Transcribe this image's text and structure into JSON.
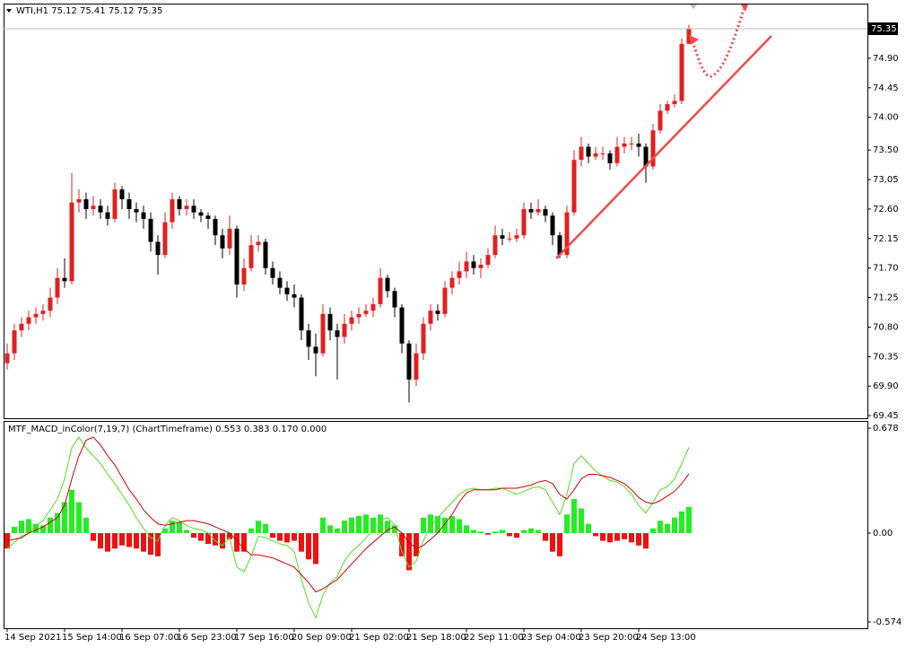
{
  "chart_data": [
    {
      "type": "candlestick",
      "title": "WTI,H1",
      "up_color": "#e02020",
      "down_color": "#000000",
      "categories": [
        "14 Sep 2021",
        null,
        null,
        null,
        null,
        null,
        null,
        null,
        "15 Sep 14:00",
        null,
        null,
        null,
        null,
        null,
        null,
        null,
        "16 Sep 07:00",
        null,
        null,
        null,
        null,
        null,
        null,
        null,
        "16 Sep 23:00",
        null,
        null,
        null,
        null,
        null,
        null,
        null,
        "17 Sep 16:00",
        null,
        null,
        null,
        null,
        null,
        null,
        null,
        "20 Sep 09:00",
        null,
        null,
        null,
        null,
        null,
        null,
        null,
        "21 Sep 02:00",
        null,
        null,
        null,
        null,
        null,
        null,
        null,
        "21 Sep 18:00",
        null,
        null,
        null,
        null,
        null,
        null,
        null,
        "22 Sep 11:00",
        null,
        null,
        null,
        null,
        null,
        null,
        null,
        "23 Sep 04:00",
        null,
        null,
        null,
        null,
        null,
        null,
        null,
        "23 Sep 20:00",
        null,
        null,
        null,
        null,
        null,
        null,
        null,
        "24 Sep 13:00",
        null,
        null,
        null,
        null,
        null,
        null,
        null
      ],
      "open": [
        70.25,
        70.4,
        70.75,
        70.85,
        70.95,
        71.0,
        71.05,
        71.25,
        71.55,
        71.5,
        72.7,
        72.75,
        72.6,
        72.65,
        72.55,
        72.45,
        72.9,
        72.75,
        72.6,
        72.55,
        72.45,
        72.1,
        71.9,
        72.4,
        72.75,
        72.6,
        72.65,
        72.55,
        72.5,
        72.45,
        72.2,
        72.0,
        72.3,
        71.45,
        71.7,
        72.05,
        72.1,
        71.7,
        71.55,
        71.4,
        71.3,
        71.25,
        70.75,
        70.5,
        70.4,
        71.0,
        70.75,
        70.65,
        70.85,
        70.95,
        71.0,
        71.05,
        71.15,
        71.55,
        71.35,
        71.1,
        70.55,
        70.0,
        70.4,
        70.85,
        71.05,
        71.0,
        71.4,
        71.55,
        71.65,
        71.8,
        71.7,
        71.75,
        71.9,
        72.2,
        72.15,
        72.15,
        72.2,
        72.6,
        72.55,
        72.6,
        72.5,
        72.2,
        71.9,
        72.55,
        73.35,
        73.55,
        73.4,
        73.45,
        73.45,
        73.3,
        73.55,
        73.6,
        73.6,
        73.55,
        73.25,
        73.8,
        74.1,
        74.2,
        74.25,
        75.12
      ],
      "high": [
        70.55,
        70.85,
        70.95,
        71.05,
        71.1,
        71.15,
        71.4,
        71.7,
        71.85,
        73.15,
        72.9,
        72.85,
        72.8,
        72.75,
        72.65,
        73.0,
        72.95,
        72.85,
        72.7,
        72.65,
        72.55,
        72.2,
        72.55,
        72.85,
        72.8,
        72.75,
        72.75,
        72.6,
        72.55,
        72.5,
        72.3,
        72.5,
        72.35,
        71.85,
        72.2,
        72.2,
        72.15,
        71.8,
        71.65,
        71.5,
        71.45,
        71.3,
        70.85,
        70.7,
        71.15,
        71.1,
        70.85,
        71.0,
        71.05,
        71.1,
        71.15,
        71.25,
        71.7,
        71.6,
        71.4,
        71.15,
        70.6,
        70.55,
        70.95,
        71.15,
        71.15,
        71.5,
        71.65,
        71.8,
        71.95,
        71.9,
        71.85,
        72.0,
        72.35,
        72.3,
        72.25,
        72.3,
        72.7,
        72.7,
        72.75,
        72.65,
        72.55,
        72.25,
        72.65,
        73.5,
        73.7,
        73.6,
        73.55,
        73.55,
        73.5,
        73.7,
        73.7,
        73.7,
        73.75,
        73.6,
        73.9,
        74.2,
        74.25,
        74.35,
        75.2,
        75.41
      ],
      "low": [
        70.15,
        70.3,
        70.65,
        70.75,
        70.85,
        70.9,
        70.95,
        71.15,
        71.4,
        71.45,
        72.55,
        72.45,
        72.5,
        72.45,
        72.35,
        72.4,
        72.6,
        72.45,
        72.4,
        72.3,
        71.95,
        71.6,
        71.85,
        72.3,
        72.5,
        72.5,
        72.45,
        72.4,
        72.3,
        72.05,
        71.85,
        71.9,
        71.25,
        71.35,
        71.65,
        71.95,
        71.6,
        71.45,
        71.3,
        71.2,
        71.1,
        70.6,
        70.3,
        70.05,
        70.35,
        70.6,
        70.0,
        70.55,
        70.75,
        70.85,
        70.95,
        70.95,
        71.1,
        71.25,
        70.95,
        70.4,
        69.65,
        69.9,
        70.3,
        70.75,
        70.9,
        70.95,
        71.3,
        71.45,
        71.55,
        71.6,
        71.55,
        71.7,
        71.85,
        72.05,
        72.1,
        72.1,
        72.15,
        72.45,
        72.5,
        72.4,
        72.05,
        71.85,
        71.85,
        72.5,
        73.25,
        73.3,
        73.35,
        73.35,
        73.2,
        73.25,
        73.45,
        73.5,
        73.4,
        73.0,
        73.2,
        73.75,
        74.05,
        74.15,
        74.2,
        75.12
      ],
      "close": [
        70.4,
        70.75,
        70.85,
        70.95,
        71.0,
        71.05,
        71.25,
        71.55,
        71.5,
        72.7,
        72.75,
        72.6,
        72.65,
        72.55,
        72.45,
        72.9,
        72.75,
        72.6,
        72.55,
        72.45,
        72.1,
        71.9,
        72.4,
        72.75,
        72.6,
        72.65,
        72.55,
        72.5,
        72.45,
        72.2,
        72.0,
        72.3,
        71.45,
        71.7,
        72.05,
        72.1,
        71.7,
        71.55,
        71.4,
        71.3,
        71.25,
        70.75,
        70.5,
        70.4,
        71.0,
        70.75,
        70.65,
        70.85,
        70.95,
        71.0,
        71.05,
        71.15,
        71.55,
        71.35,
        71.1,
        70.55,
        70.0,
        70.4,
        70.85,
        71.05,
        71.0,
        71.4,
        71.55,
        71.65,
        71.8,
        71.7,
        71.75,
        71.9,
        72.2,
        72.15,
        72.15,
        72.2,
        72.6,
        72.55,
        72.6,
        72.5,
        72.2,
        71.9,
        72.55,
        73.35,
        73.55,
        73.4,
        73.45,
        73.45,
        73.3,
        73.55,
        73.6,
        73.6,
        73.55,
        73.25,
        73.8,
        74.1,
        74.2,
        74.25,
        75.12,
        75.35
      ],
      "ylim": [
        69.41,
        75.72
      ],
      "yticks": [
        {
          "value": 74.9,
          "label": "74.90"
        },
        74.45,
        {
          "value": 74,
          "label": "74.00"
        },
        {
          "value": 73.5,
          "label": "73.50"
        },
        73.05,
        {
          "value": 72.6,
          "label": "72.60"
        },
        72.15,
        {
          "value": 71.7,
          "label": "71.70"
        },
        71.25,
        {
          "value": 70.8,
          "label": "70.80"
        },
        70.35,
        {
          "value": 69.9,
          "label": "69.90"
        },
        69.45
      ],
      "grid": false
    },
    {
      "type": "combo",
      "title": "MTF_MACD_inColor(7,19,7) (ChartTimeframe)",
      "legend_values": [
        0.553,
        0.383,
        {
          "value": 0.17,
          "label": "0.170"
        },
        {
          "value": 0,
          "label": "0.000"
        }
      ],
      "series": [
        {
          "name": "MACD",
          "kind": "line",
          "color": "#55dd22",
          "values": [
            -0.1,
            -0.06,
            -0.02,
            0.0,
            0.05,
            0.08,
            0.15,
            0.22,
            0.35,
            0.55,
            0.62,
            0.55,
            0.5,
            0.45,
            0.38,
            0.32,
            0.25,
            0.18,
            0.1,
            0.03,
            -0.03,
            -0.05,
            0.05,
            0.1,
            0.08,
            0.05,
            0.03,
            0.02,
            0.0,
            -0.05,
            -0.08,
            -0.03,
            -0.22,
            -0.25,
            -0.15,
            -0.02,
            -0.03,
            -0.05,
            -0.07,
            -0.08,
            -0.12,
            -0.3,
            -0.45,
            -0.55,
            -0.4,
            -0.32,
            -0.28,
            -0.18,
            -0.12,
            -0.08,
            -0.03,
            0.02,
            0.08,
            0.1,
            0.05,
            -0.12,
            -0.22,
            -0.18,
            -0.05,
            0.05,
            0.1,
            0.15,
            0.2,
            0.25,
            0.28,
            0.29,
            0.28,
            0.28,
            0.29,
            0.29,
            0.27,
            0.25,
            0.27,
            0.29,
            0.3,
            0.28,
            0.2,
            0.12,
            0.25,
            0.45,
            0.5,
            0.45,
            0.4,
            0.37,
            0.34,
            0.33,
            0.3,
            0.25,
            0.18,
            0.13,
            0.2,
            0.28,
            0.3,
            0.35,
            0.45,
            0.553
          ]
        },
        {
          "name": "Signal",
          "kind": "line",
          "color": "#cc0000",
          "values": [
            -0.05,
            -0.04,
            -0.03,
            0.0,
            0.02,
            0.04,
            0.07,
            0.1,
            0.18,
            0.35,
            0.5,
            0.6,
            0.62,
            0.57,
            0.5,
            0.44,
            0.36,
            0.28,
            0.22,
            0.15,
            0.1,
            0.06,
            0.05,
            0.06,
            0.07,
            0.08,
            0.08,
            0.07,
            0.06,
            0.04,
            0.02,
            0.0,
            -0.05,
            -0.1,
            -0.14,
            -0.14,
            -0.15,
            -0.16,
            -0.18,
            -0.2,
            -0.22,
            -0.27,
            -0.32,
            -0.38,
            -0.36,
            -0.33,
            -0.3,
            -0.25,
            -0.2,
            -0.15,
            -0.1,
            -0.06,
            -0.02,
            0.02,
            0.04,
            0.0,
            -0.06,
            -0.1,
            -0.08,
            -0.04,
            0.0,
            0.06,
            0.12,
            0.2,
            0.26,
            0.28,
            0.28,
            0.28,
            0.28,
            0.29,
            0.29,
            0.29,
            0.3,
            0.31,
            0.33,
            0.34,
            0.32,
            0.25,
            0.22,
            0.28,
            0.35,
            0.38,
            0.38,
            0.37,
            0.36,
            0.34,
            0.32,
            0.28,
            0.23,
            0.2,
            0.19,
            0.21,
            0.24,
            0.27,
            0.32,
            0.383
          ]
        },
        {
          "name": "Histogram",
          "kind": "bar",
          "positive_color": "#22ee22",
          "negative_color": "#ee1111",
          "values": [
            -0.1,
            0.04,
            0.08,
            0.09,
            0.06,
            0.05,
            0.1,
            0.13,
            0.2,
            0.28,
            0.2,
            0.1,
            -0.05,
            -0.1,
            -0.12,
            -0.1,
            -0.08,
            -0.09,
            -0.1,
            -0.12,
            -0.14,
            -0.15,
            0.03,
            0.08,
            0.07,
            0.02,
            -0.03,
            -0.05,
            -0.07,
            -0.08,
            -0.1,
            -0.04,
            -0.12,
            -0.12,
            0.03,
            0.08,
            0.06,
            -0.03,
            -0.05,
            -0.06,
            -0.05,
            -0.12,
            -0.17,
            -0.2,
            0.1,
            0.05,
            0.03,
            0.08,
            0.1,
            0.11,
            0.12,
            0.1,
            0.12,
            0.08,
            0.05,
            -0.15,
            -0.24,
            -0.15,
            0.1,
            0.12,
            0.11,
            0.1,
            0.11,
            0.09,
            0.05,
            0.02,
            0.01,
            -0.01,
            0.01,
            0.02,
            -0.02,
            -0.03,
            0.02,
            0.03,
            0.02,
            -0.05,
            -0.12,
            -0.15,
            0.12,
            0.22,
            0.16,
            0.06,
            -0.02,
            -0.05,
            -0.06,
            -0.05,
            -0.04,
            -0.06,
            -0.08,
            -0.1,
            0.03,
            0.08,
            0.06,
            0.1,
            0.14,
            0.17
          ]
        }
      ],
      "ylim": [
        -0.615,
        0.719
      ],
      "yticks": [
        0.678,
        {
          "value": 0,
          "label": "0.00"
        },
        -0.574
      ]
    }
  ]
}
